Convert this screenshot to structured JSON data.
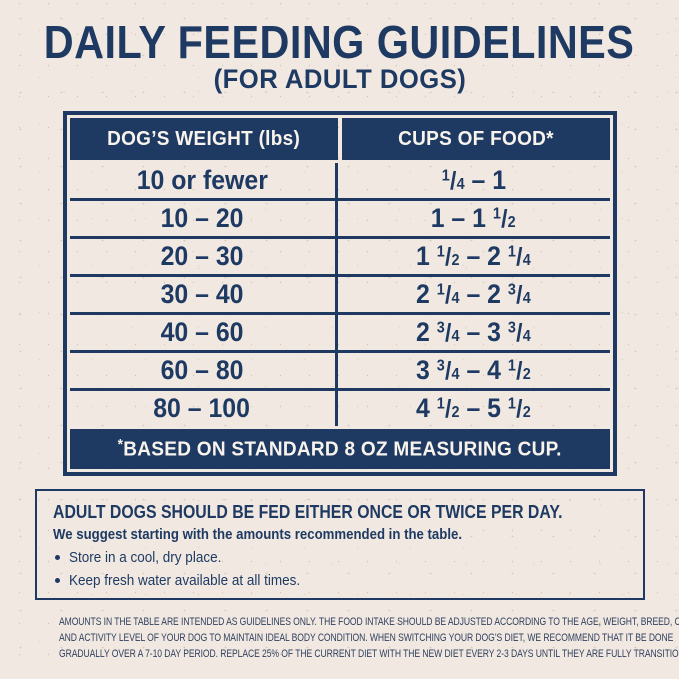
{
  "header": {
    "title": "DAILY FEEDING GUIDELINES",
    "subtitle": "(FOR ADULT DOGS)"
  },
  "table": {
    "headers": [
      "DOG’S WEIGHT (lbs)",
      "CUPS OF FOOD*"
    ],
    "rows": [
      {
        "weight": "10 or fewer",
        "cups": "1/4 – 1"
      },
      {
        "weight": "10 – 20",
        "cups": "1 – 1 1/2"
      },
      {
        "weight": "20 – 30",
        "cups": "1 1/2 – 2 1/4"
      },
      {
        "weight": "30 – 40",
        "cups": "2 1/4 – 2 3/4"
      },
      {
        "weight": "40 – 60",
        "cups": "2 3/4 – 3 3/4"
      },
      {
        "weight": "60 – 80",
        "cups": "3 3/4 – 4 1/2"
      },
      {
        "weight": "80 – 100",
        "cups": "4 1/2 – 5 1/2"
      }
    ],
    "footnote_star": "*",
    "footnote_text": "BASED ON STANDARD 8 OZ MEASURING CUP."
  },
  "info_box": {
    "heading": "ADULT DOGS SHOULD BE FED EITHER ONCE OR TWICE PER DAY.",
    "subheading": "We suggest starting with the amounts recommended in the table.",
    "bullets": [
      "Store in a cool, dry place.",
      "Keep fresh water available at all times."
    ]
  },
  "disclaimer": {
    "lines": [
      "AMOUNTS IN THE TABLE ARE INTENDED AS GUIDELINES ONLY. THE FOOD INTAKE SHOULD BE ADJUSTED ACCORDING TO THE AGE, WEIGHT, BREED, CLIMATE,",
      "AND ACTIVITY LEVEL OF YOUR DOG TO MAINTAIN IDEAL BODY CONDITION. WHEN SWITCHING YOUR DOG’S DIET, WE RECOMMEND THAT IT BE DONE",
      "GRADUALLY OVER A 7-10 DAY PERIOD. REPLACE 25% OF THE CURRENT DIET WITH THE NEW DIET EVERY 2-3 DAYS UNTIL THEY ARE FULLY TRANSITIONED."
    ]
  },
  "colors": {
    "navy": "#1e3a63",
    "cream_background": "#f1e9e1",
    "header_text": "#f8f3ec"
  }
}
